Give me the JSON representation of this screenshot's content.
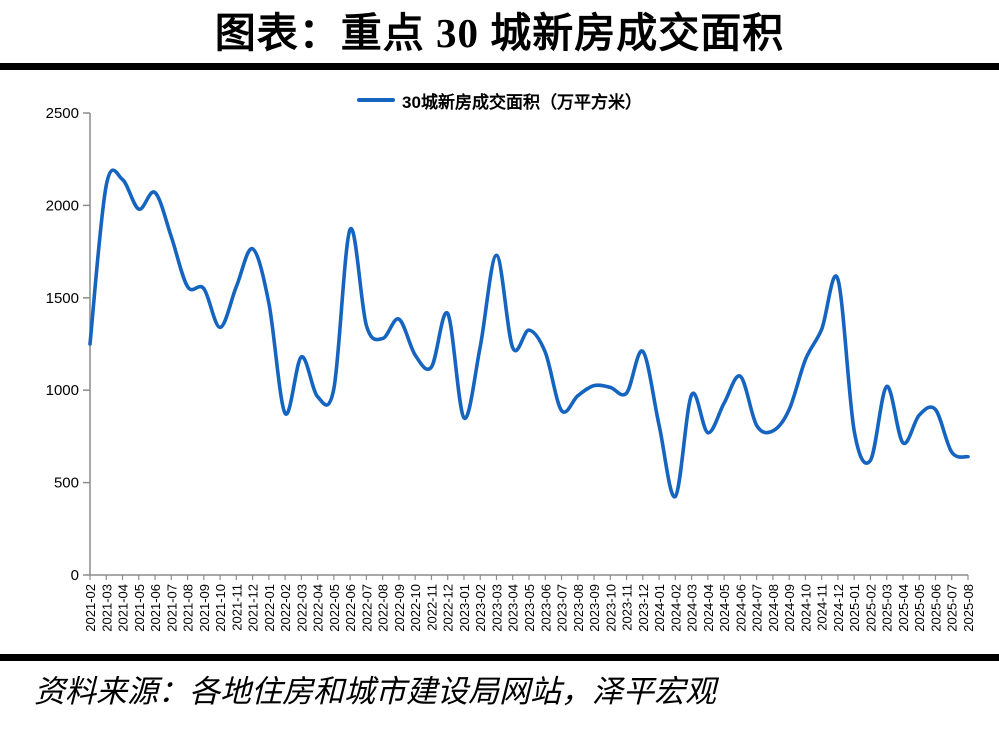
{
  "page": {
    "title": "图表：重点 30 城新房成交面积",
    "source": "资料来源：各地住房和城市建设局网站，泽平宏观"
  },
  "legend": {
    "label": "30城新房成交面积（万平方米）"
  },
  "colors": {
    "line": "#1565C0",
    "axis": "#8c8c8c",
    "label_text": "#000000",
    "rule": "#000000"
  },
  "chart_data": {
    "type": "line",
    "title": "图表：重点 30 城新房成交面积",
    "ylabel": "",
    "xlabel": "",
    "unit": "万平方米",
    "legend_entries": [
      "30城新房成交面积（万平方米）"
    ],
    "legend_position": "top",
    "grid": false,
    "smooth": true,
    "ylim": [
      0,
      2500
    ],
    "y_ticks": [
      0,
      500,
      1000,
      1500,
      2000,
      2500
    ],
    "categories": [
      "2021-02",
      "2021-03",
      "2021-04",
      "2021-05",
      "2021-06",
      "2021-07",
      "2021-08",
      "2021-09",
      "2021-10",
      "2021-11",
      "2021-12",
      "2022-01",
      "2022-02",
      "2022-03",
      "2022-04",
      "2022-05",
      "2022-06",
      "2022-07",
      "2022-08",
      "2022-09",
      "2022-10",
      "2022-11",
      "2022-12",
      "2023-01",
      "2023-02",
      "2023-03",
      "2023-04",
      "2023-05",
      "2023-06",
      "2023-07",
      "2023-08",
      "2023-09",
      "2023-10",
      "2023-11",
      "2023-12",
      "2024-01",
      "2024-02",
      "2024-03",
      "2024-04",
      "2024-05",
      "2024-06",
      "2024-07",
      "2024-08",
      "2024-09",
      "2024-10",
      "2024-11",
      "2024-12",
      "2025-01",
      "2025-02",
      "2025-03",
      "2025-04",
      "2025-05",
      "2025-06",
      "2025-07",
      "2025-08"
    ],
    "series": [
      {
        "name": "30城新房成交面积（万平方米）",
        "values": [
          1250,
          2110,
          2140,
          1980,
          2070,
          1830,
          1560,
          1550,
          1340,
          1560,
          1765,
          1470,
          875,
          1180,
          965,
          1010,
          1870,
          1350,
          1280,
          1385,
          1190,
          1125,
          1415,
          850,
          1235,
          1730,
          1230,
          1325,
          1205,
          890,
          970,
          1025,
          1015,
          985,
          1210,
          810,
          425,
          975,
          770,
          930,
          1075,
          810,
          780,
          895,
          1165,
          1330,
          1600,
          780,
          620,
          1020,
          715,
          865,
          895,
          665,
          640
        ]
      }
    ]
  }
}
